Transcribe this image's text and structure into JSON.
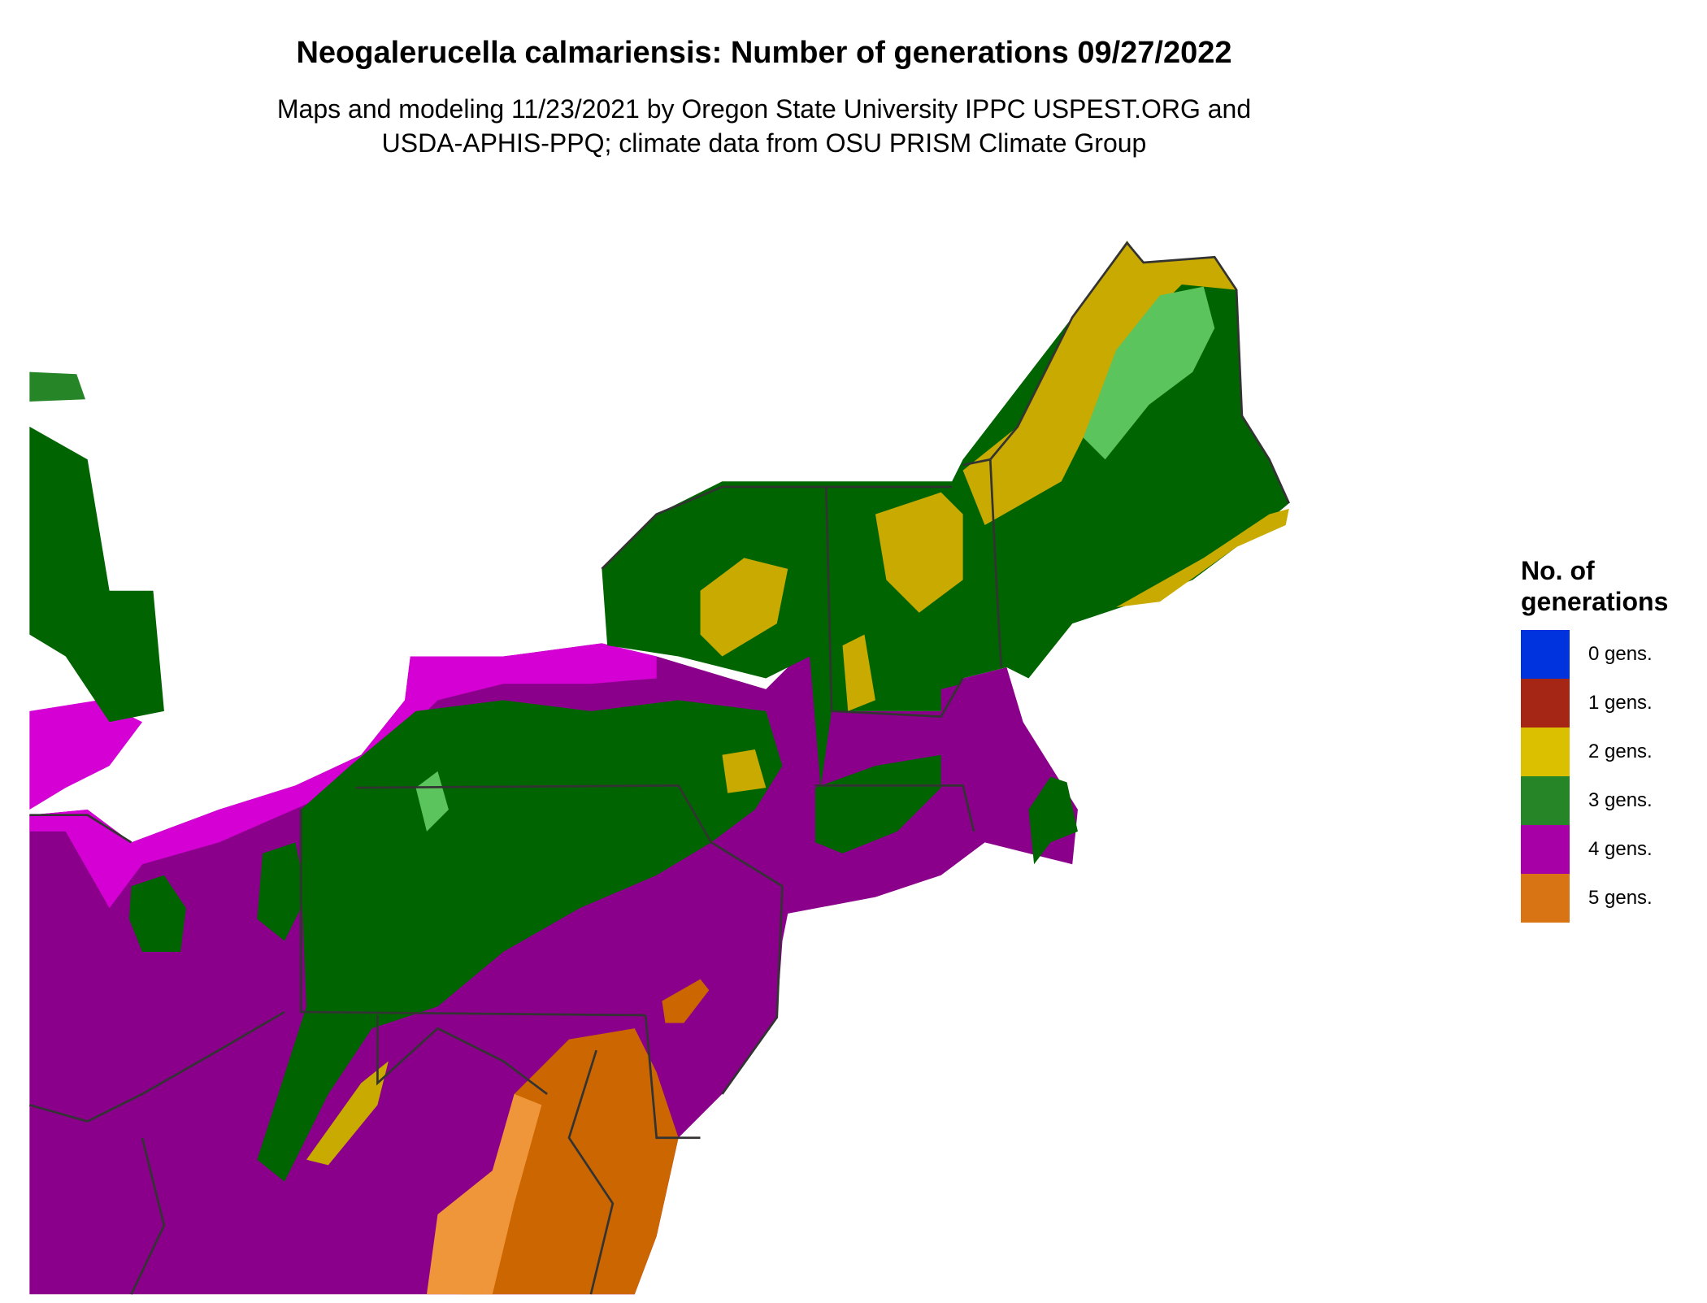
{
  "title": "Neogalerucella calmariensis: Number of generations 09/27/2022",
  "subtitle_line1": "Maps and modeling 11/23/2021 by Oregon State University IPPC USPEST.ORG and",
  "subtitle_line2": "USDA-APHIS-PPQ; climate data from OSU PRISM Climate Group",
  "legend": {
    "title": "No. of generations",
    "items": [
      {
        "label": "0 gens.",
        "color": "#0033dd"
      },
      {
        "label": "1 gens.",
        "color": "#a62615"
      },
      {
        "label": "2 gens.",
        "color": "#dbc000"
      },
      {
        "label": "3 gens.",
        "color": "#268526"
      },
      {
        "label": "4 gens.",
        "color": "#a600a6"
      },
      {
        "label": "5 gens.",
        "color": "#d97414"
      }
    ]
  },
  "map_colors": {
    "dark_green": "#006400",
    "light_green": "#5cc45c",
    "yellow": "#c8aa00",
    "purple": "#8b008b",
    "magenta": "#d400d4",
    "orange": "#cc6600",
    "light_orange": "#f0963a",
    "state_lines": "#333333"
  }
}
